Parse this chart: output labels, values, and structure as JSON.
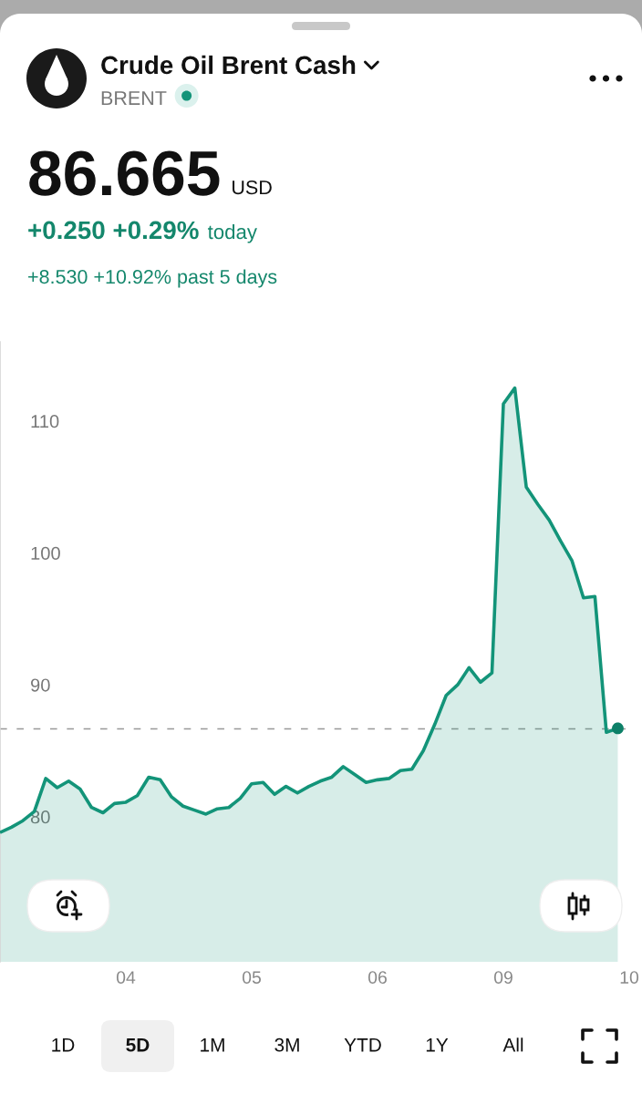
{
  "chart_data": {
    "type": "area",
    "title": "Crude Oil Brent Cash",
    "subtitle": "BRENT",
    "annotations": [
      "86.665",
      "USD",
      "+0.250 +0.29%",
      "today",
      "+8.530 +10.92% past 5 days",
      "1D",
      "5D",
      "1M",
      "3M",
      "YTD",
      "1Y",
      "All"
    ],
    "categories": [
      null,
      null,
      null,
      null,
      null,
      null,
      null,
      null,
      null,
      null,
      null,
      "04",
      null,
      null,
      null,
      null,
      null,
      null,
      null,
      null,
      null,
      null,
      "05",
      null,
      null,
      null,
      null,
      null,
      null,
      null,
      null,
      null,
      null,
      "06",
      null,
      null,
      null,
      null,
      null,
      null,
      null,
      null,
      null,
      null,
      "09",
      null,
      null,
      null,
      null,
      null,
      null,
      null,
      null,
      null,
      null,
      "10"
    ],
    "series": [
      {
        "color": "#139479",
        "values": [
          78.8,
          79.2,
          79.7,
          80.4,
          82.9,
          82.2,
          82.7,
          82.1,
          80.7,
          80.3,
          81.0,
          81.1,
          81.6,
          83.0,
          82.8,
          81.5,
          80.8,
          80.5,
          80.2,
          80.6,
          80.7,
          81.4,
          82.5,
          82.6,
          81.7,
          82.3,
          81.8,
          82.3,
          82.7,
          83.0,
          83.8,
          83.2,
          82.6,
          82.8,
          82.9,
          83.5,
          83.6,
          85.0,
          87.0,
          89.2,
          90.0,
          91.3,
          90.2,
          90.9,
          111.3,
          112.5,
          105.0,
          103.7,
          102.5,
          100.9,
          99.4,
          96.6,
          96.7,
          86.4,
          86.7,
          null
        ]
      },
      {
        "type": "scatter",
        "color": "#0d8068",
        "marker": "circle",
        "values": [
          null,
          null,
          null,
          null,
          null,
          null,
          null,
          null,
          null,
          null,
          null,
          null,
          null,
          null,
          null,
          null,
          null,
          null,
          null,
          null,
          null,
          null,
          null,
          null,
          null,
          null,
          null,
          null,
          null,
          null,
          null,
          null,
          null,
          null,
          null,
          null,
          null,
          null,
          null,
          null,
          null,
          null,
          null,
          null,
          null,
          null,
          null,
          null,
          null,
          null,
          null,
          null,
          null,
          null,
          86.7,
          null
        ]
      }
    ],
    "ylim": [
      69,
      116
    ],
    "yticks": [
      80,
      90,
      100,
      110
    ],
    "ref_lines": [
      {
        "axis": "y",
        "value": 86.665,
        "color": "#999999",
        "line_style": "dashed"
      }
    ],
    "grid": false
  }
}
